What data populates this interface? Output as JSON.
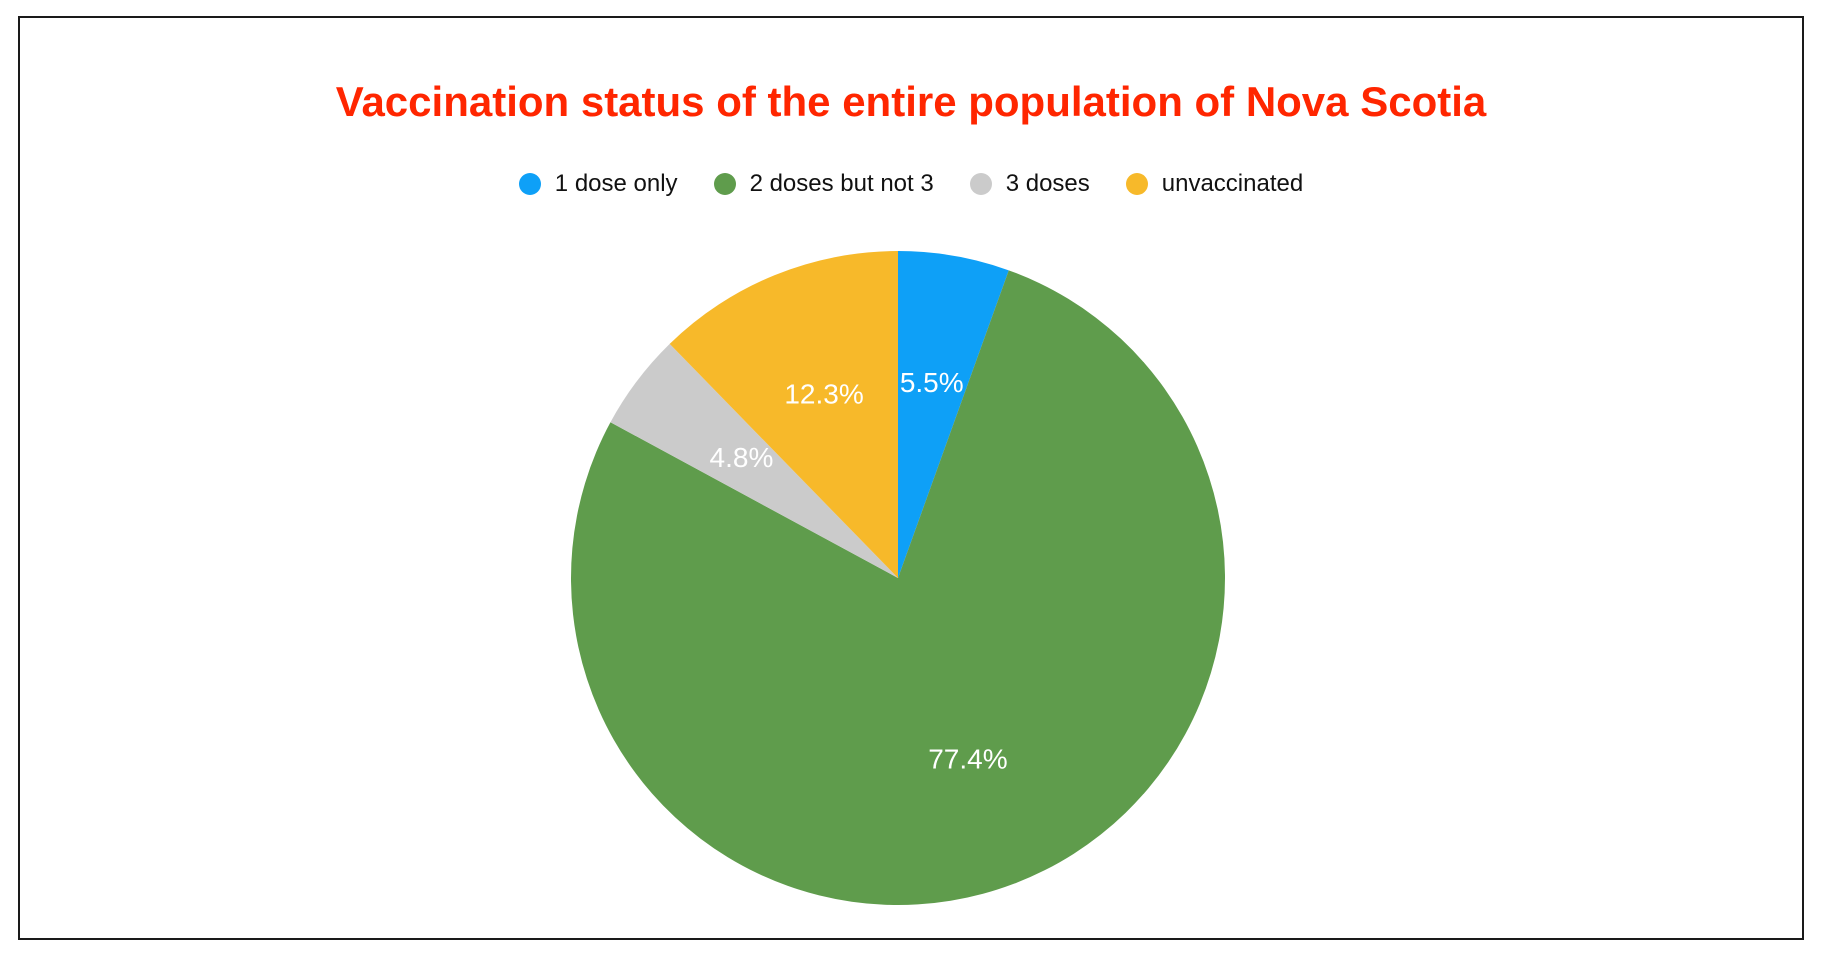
{
  "chart_data": {
    "type": "pie",
    "title": "Vaccination status of the entire population of Nova Scotia",
    "title_color": "#ff2600",
    "legend_position": "top",
    "slices": [
      {
        "name": "1 dose only",
        "value": 5.5,
        "label": "5.5%",
        "color": "#0ea0f7"
      },
      {
        "name": "2 doses but not 3",
        "value": 77.4,
        "label": "77.4%",
        "color": "#5f9c4c"
      },
      {
        "name": "3 doses",
        "value": 4.8,
        "label": "4.8%",
        "color": "#cbcbcb"
      },
      {
        "name": "unvaccinated",
        "value": 12.3,
        "label": "12.3%",
        "color": "#f7b92a"
      }
    ]
  }
}
